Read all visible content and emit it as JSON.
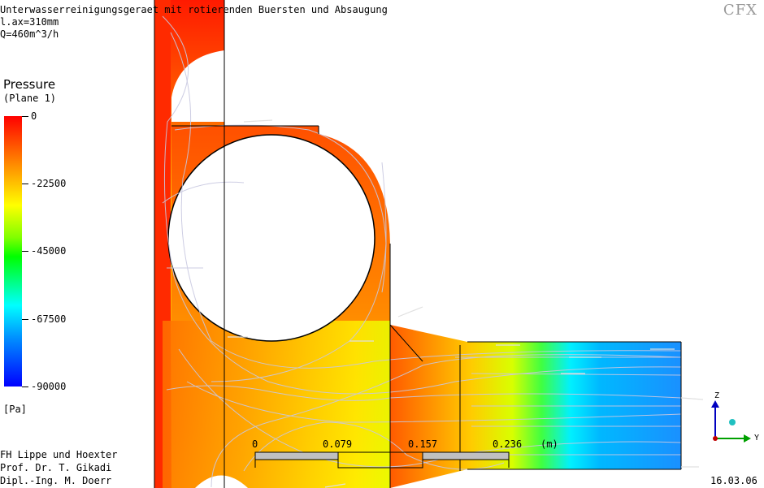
{
  "header": {
    "title": "Unterwasserreinigungsgeraet mit rotierenden Buersten und Absaugung",
    "line2": "l.ax=310mm",
    "line3": "Q=460m^3/h"
  },
  "logo": {
    "text": "CFX"
  },
  "legend": {
    "title": "Pressure",
    "subtitle": "(Plane  1)",
    "ticks": [
      "0",
      "-22500",
      "-45000",
      "-67500",
      "-90000"
    ],
    "unit": "[Pa]"
  },
  "scale_bar": {
    "labels": [
      "0",
      "0.079",
      "0.157",
      "0.236",
      "(m)"
    ]
  },
  "footer": {
    "line1": "FH Lippe und Hoexter",
    "line2": "Prof. Dr. T. Gikadi",
    "line3": "Dipl.-Ing. M. Doerr",
    "date": "16.03.06"
  },
  "axes_triad": {
    "z": "Z",
    "y": "Y"
  },
  "colors": {
    "high": "#ff0000",
    "mid": "#ffff00",
    "low": "#0000ff"
  }
}
